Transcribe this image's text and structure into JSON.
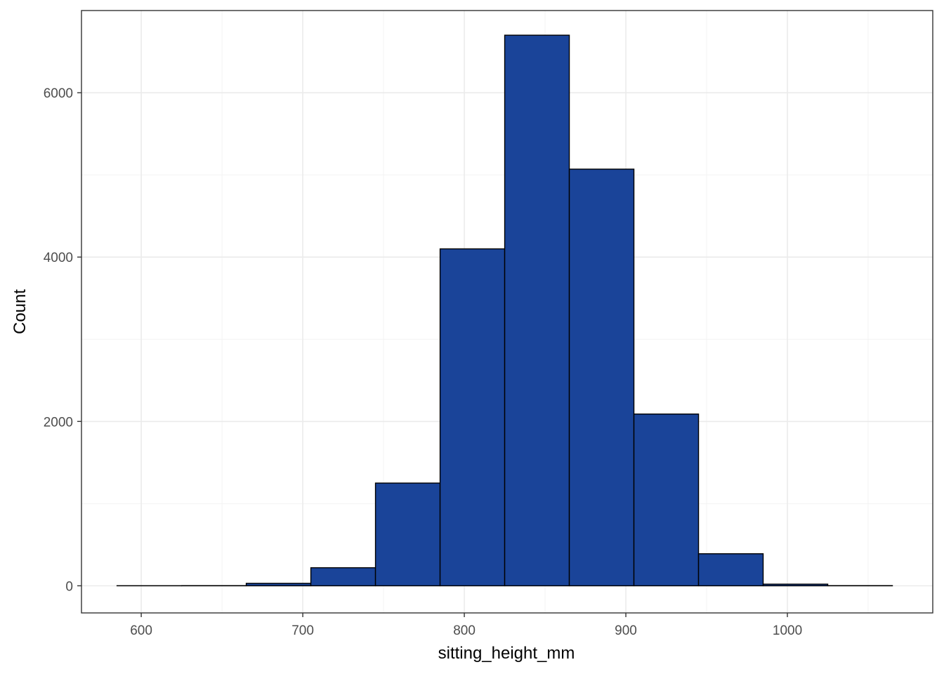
{
  "chart_data": {
    "type": "bar",
    "subtype": "histogram",
    "title": "",
    "xlabel": "sitting_height_mm",
    "ylabel": "Count",
    "xlim": [
      563,
      1090
    ],
    "ylim": [
      -330,
      7000
    ],
    "x_ticks": [
      600,
      700,
      800,
      900,
      1000
    ],
    "x_tick_labels": [
      "600",
      "700",
      "800",
      "900",
      "1000"
    ],
    "y_ticks": [
      0,
      2000,
      4000,
      6000
    ],
    "y_tick_labels": [
      "0",
      "2000",
      "4000",
      "6000"
    ],
    "grid": true,
    "legend": "none",
    "bins": [
      {
        "x0": 585,
        "x1": 625,
        "count": 1
      },
      {
        "x0": 625,
        "x1": 665,
        "count": 2
      },
      {
        "x0": 665,
        "x1": 705,
        "count": 30
      },
      {
        "x0": 705,
        "x1": 745,
        "count": 220
      },
      {
        "x0": 745,
        "x1": 785,
        "count": 1250
      },
      {
        "x0": 785,
        "x1": 825,
        "count": 4100
      },
      {
        "x0": 825,
        "x1": 865,
        "count": 6700
      },
      {
        "x0": 865,
        "x1": 905,
        "count": 5070
      },
      {
        "x0": 905,
        "x1": 945,
        "count": 2090
      },
      {
        "x0": 945,
        "x1": 985,
        "count": 390
      },
      {
        "x0": 985,
        "x1": 1025,
        "count": 20
      },
      {
        "x0": 1025,
        "x1": 1065,
        "count": 2
      }
    ],
    "colors": {
      "bar_fill": "#1a4499",
      "bar_stroke": "#000000",
      "grid_major": "#ebebeb",
      "grid_minor": "#f3f3f3",
      "panel_border": "#333333",
      "tick_text": "#4d4d4d"
    }
  }
}
